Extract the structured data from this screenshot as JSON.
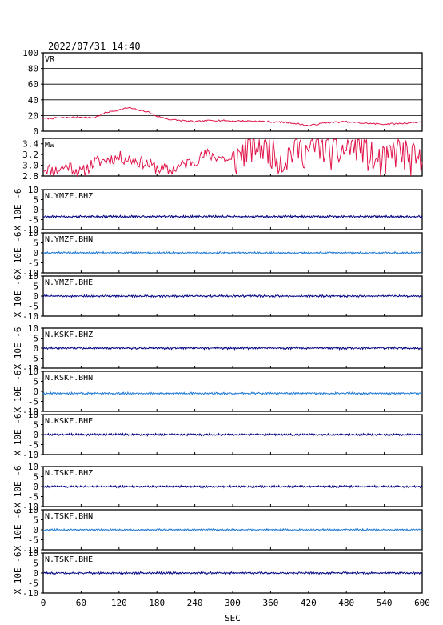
{
  "title": "2022/07/31  14:40",
  "xlabel": "SEC",
  "colors": {
    "vr": "#e0144a",
    "mw": "#e0144a",
    "trace_dark": "#000080",
    "trace_light": "#1e78d2",
    "grid": "#000000"
  },
  "x_ticks": [
    "0",
    "60",
    "120",
    "180",
    "240",
    "300",
    "360",
    "420",
    "480",
    "540",
    "600"
  ],
  "chart_data": [
    {
      "type": "line",
      "label": "VR",
      "ylim": [
        0,
        100
      ],
      "yticks": [
        "0",
        "20",
        "40",
        "60",
        "80",
        "100"
      ],
      "grid": "horizontal",
      "x": [
        0,
        30,
        60,
        80,
        100,
        120,
        135,
        150,
        165,
        180,
        200,
        240,
        270,
        300,
        330,
        360,
        390,
        420,
        450,
        480,
        510,
        540,
        570,
        600
      ],
      "values": [
        16,
        17,
        18,
        17,
        24,
        27,
        30,
        27,
        25,
        19,
        15,
        12,
        14,
        13,
        13,
        12,
        11,
        7,
        11,
        12,
        10,
        9,
        10,
        12
      ]
    },
    {
      "type": "line",
      "label": "Mw",
      "ylim": [
        2.8,
        3.5
      ],
      "yticks": [
        "2.8",
        "3.0",
        "3.2",
        "3.4"
      ],
      "x": [
        0,
        20,
        40,
        60,
        80,
        100,
        120,
        140,
        160,
        180,
        200,
        220,
        240,
        260,
        280,
        300,
        320,
        340,
        360,
        380,
        400,
        420,
        440,
        460,
        480,
        500,
        520,
        540,
        560,
        580,
        600
      ],
      "values": [
        2.95,
        2.9,
        3.0,
        2.85,
        3.05,
        3.1,
        3.15,
        3.1,
        3.05,
        2.95,
        2.9,
        3.0,
        3.1,
        3.2,
        3.15,
        3.05,
        3.3,
        3.4,
        3.3,
        3.1,
        3.35,
        3.25,
        3.4,
        3.2,
        3.3,
        3.45,
        3.1,
        3.0,
        3.3,
        3.1,
        3.0
      ]
    },
    {
      "type": "line",
      "label": "N.YMZF.BHZ",
      "ylim": [
        -10,
        10
      ],
      "yticks": [
        "-10",
        "-5",
        "0",
        "5",
        "10"
      ],
      "ylabel": "X 10E -6",
      "color": "trace_dark",
      "baseline": -3.5,
      "amplitude": 0.5
    },
    {
      "type": "line",
      "label": "N.YMZF.BHN",
      "ylim": [
        -10,
        10
      ],
      "yticks": [
        "-10",
        "-5",
        "0",
        "5",
        "10"
      ],
      "ylabel": "X 10E -6",
      "color": "trace_light",
      "baseline": 0,
      "amplitude": 0.45
    },
    {
      "type": "line",
      "label": "N.YMZF.BHE",
      "ylim": [
        -10,
        10
      ],
      "yticks": [
        "-10",
        "-5",
        "0",
        "5",
        "10"
      ],
      "ylabel": "X 10E -6",
      "color": "trace_dark",
      "baseline": 0,
      "amplitude": 0.45
    },
    {
      "type": "line",
      "label": "N.KSKF.BHZ",
      "ylim": [
        -10,
        10
      ],
      "yticks": [
        "-10",
        "-5",
        "0",
        "5",
        "10"
      ],
      "ylabel": "X 10E -6",
      "color": "trace_dark",
      "baseline": 0,
      "amplitude": 0.5
    },
    {
      "type": "line",
      "label": "N.KSKF.BHN",
      "ylim": [
        -10,
        10
      ],
      "yticks": [
        "-10",
        "-5",
        "0",
        "5",
        "10"
      ],
      "ylabel": "X 10E -6",
      "color": "trace_light",
      "baseline": -1,
      "amplitude": 0.45
    },
    {
      "type": "line",
      "label": "N.KSKF.BHE",
      "ylim": [
        -10,
        10
      ],
      "yticks": [
        "-10",
        "-5",
        "0",
        "5",
        "10"
      ],
      "ylabel": "X 10E -6",
      "color": "trace_dark",
      "baseline": 0,
      "amplitude": 0.45
    },
    {
      "type": "line",
      "label": "N.TSKF.BHZ",
      "ylim": [
        -10,
        10
      ],
      "yticks": [
        "-10",
        "-5",
        "0",
        "5",
        "10"
      ],
      "ylabel": "X 10E -6",
      "color": "trace_dark",
      "baseline": 0,
      "amplitude": 0.45
    },
    {
      "type": "line",
      "label": "N.TSKF.BHN",
      "ylim": [
        -10,
        10
      ],
      "yticks": [
        "-10",
        "-5",
        "0",
        "5",
        "10"
      ],
      "ylabel": "X 10E -6",
      "color": "trace_light",
      "baseline": 0,
      "amplitude": 0.4
    },
    {
      "type": "line",
      "label": "N.TSKF.BHE",
      "ylim": [
        -10,
        10
      ],
      "yticks": [
        "-10",
        "-5",
        "0",
        "5",
        "10"
      ],
      "ylabel": "X 10E -6",
      "color": "trace_dark",
      "baseline": 0,
      "amplitude": 0.45
    }
  ]
}
